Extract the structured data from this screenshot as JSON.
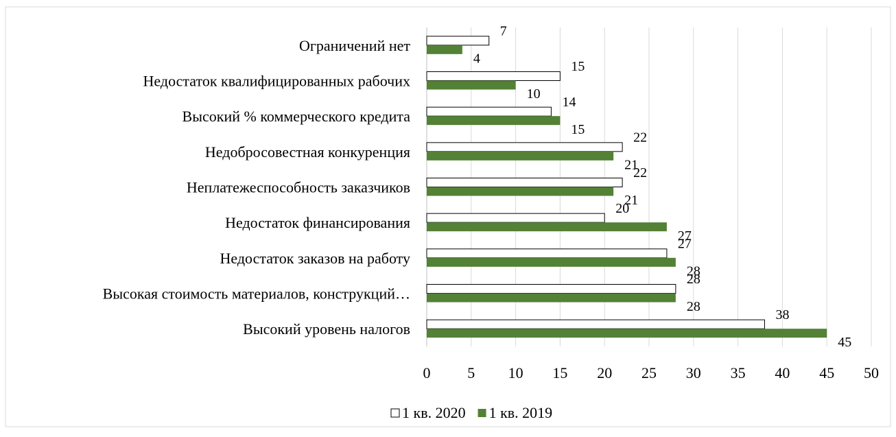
{
  "chart_data": {
    "type": "hbar",
    "categories": [
      "Ограничений нет",
      "Недостаток квалифицированных рабочих",
      "Высокий % коммерческого кредита",
      "Недобросовестная конкуренция",
      "Неплатежеспособность заказчиков",
      "Недостаток финансирования",
      "Недостаток заказов на работу",
      "Высокая стоимость материалов, конструкций…",
      "Высокий уровень налогов"
    ],
    "series": [
      {
        "name": "1 кв. 2020",
        "color": "#ffffff",
        "values": [
          7,
          15,
          14,
          22,
          22,
          20,
          27,
          28,
          38
        ]
      },
      {
        "name": "1 кв. 2019",
        "color": "#538135",
        "values": [
          4,
          10,
          15,
          21,
          21,
          27,
          28,
          28,
          45
        ]
      }
    ],
    "xlim": [
      0,
      50
    ],
    "xticks": [
      0,
      5,
      10,
      15,
      20,
      25,
      30,
      35,
      40,
      45,
      50
    ],
    "grid": true
  }
}
